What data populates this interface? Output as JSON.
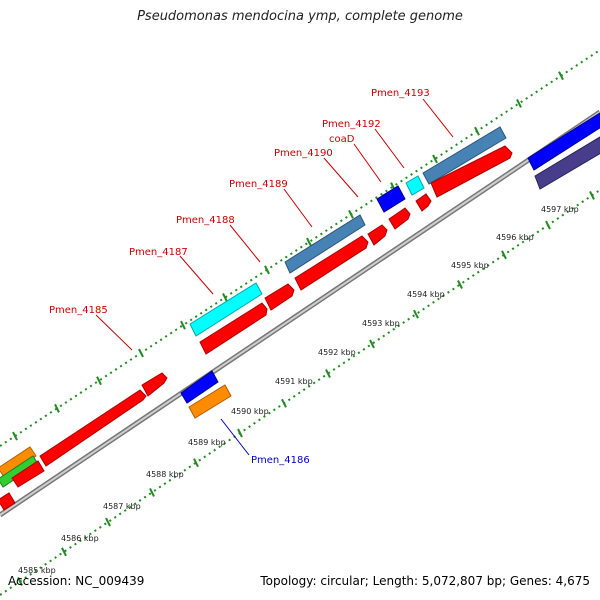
{
  "title": "Pseudomonas mendocina ymp, complete genome",
  "footer": {
    "accession": "Accession: NC_009439",
    "summary": "Topology: circular; Length: 5,072,807 bp; Genes: 4,675"
  },
  "colors": {
    "red": "#ff0000",
    "cyan": "#00ffff",
    "steelblue": "#4682b4",
    "blue": "#0000ff",
    "darkslate": "#483d8b",
    "orange": "#ff8c00",
    "green": "#32cd32",
    "label_red": "#cc0000",
    "label_blue": "#0000cc",
    "ruler": "#228b22",
    "backbone": "#888888"
  },
  "tick_labels": [
    "4585 kbp",
    "4586 kbp",
    "4587 kbp",
    "4588 kbp",
    "4589 kbp",
    "4590 kbp",
    "4591 kbp",
    "4592 kbp",
    "4593 kbp",
    "4594 kbp",
    "4595 kbp",
    "4596 kbp",
    "4597 kbp"
  ],
  "gene_labels": [
    "Pmen_4185",
    "Pmen_4186",
    "Pmen_4187",
    "Pmen_4188",
    "Pmen_4189",
    "Pmen_4190",
    "coaD",
    "Pmen_4192",
    "Pmen_4193"
  ]
}
